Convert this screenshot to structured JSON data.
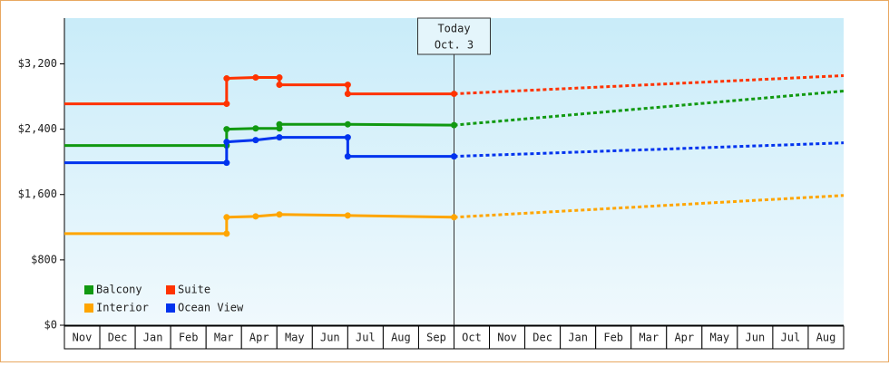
{
  "chart_data": {
    "type": "line",
    "categories": [
      "Nov",
      "Dec",
      "Jan",
      "Feb",
      "Mar",
      "Apr",
      "May",
      "Jun",
      "Jul",
      "Aug",
      "Sep",
      "Oct",
      "Nov",
      "Dec",
      "Jan",
      "Feb",
      "Mar",
      "Apr",
      "May",
      "Jun",
      "Jul",
      "Aug"
    ],
    "xlim": [
      0,
      22
    ],
    "ylim": [
      0,
      3760
    ],
    "yticks": [
      {
        "value": 0,
        "label": "$0"
      },
      {
        "value": 800,
        "label": "$800"
      },
      {
        "value": 1600,
        "label": "$1,600"
      },
      {
        "value": 2400,
        "label": "$2,400"
      },
      {
        "value": 3200,
        "label": "$3,200"
      }
    ],
    "annotation": {
      "x": 11,
      "lines": [
        "Today",
        "Oct. 3"
      ]
    },
    "series": [
      {
        "name": "Balcony",
        "color": "#119911",
        "x": [
          0,
          4.58,
          4.58,
          5.4,
          6.07,
          6.07,
          8.0,
          11
        ],
        "values": [
          2200,
          2200,
          2400,
          2410,
          2410,
          2460,
          2460,
          2450
        ],
        "projection": {
          "x": [
            11,
            22
          ],
          "values": [
            2450,
            2867
          ]
        }
      },
      {
        "name": "Suite",
        "color": "#ff3300",
        "x": [
          0,
          4.58,
          4.58,
          5.4,
          6.07,
          6.07,
          8.0,
          8.0,
          11
        ],
        "values": [
          2711,
          2711,
          3022,
          3033,
          3033,
          2944,
          2944,
          2833,
          2833
        ],
        "projection": {
          "x": [
            11,
            22
          ],
          "values": [
            2833,
            3056
          ]
        }
      },
      {
        "name": "Interior",
        "color": "#ffa500",
        "x": [
          0,
          4.58,
          4.58,
          5.4,
          6.07,
          8.0,
          11
        ],
        "values": [
          1122,
          1122,
          1322,
          1333,
          1356,
          1344,
          1322
        ],
        "projection": {
          "x": [
            11,
            22
          ],
          "values": [
            1322,
            1589
          ]
        }
      },
      {
        "name": "Ocean View",
        "color": "#0033ee",
        "x": [
          0,
          4.58,
          4.58,
          5.4,
          6.07,
          8.0,
          8.0,
          11
        ],
        "values": [
          1989,
          1989,
          2244,
          2267,
          2300,
          2300,
          2067,
          2067
        ],
        "projection": {
          "x": [
            11,
            22
          ],
          "values": [
            2067,
            2233
          ]
        }
      }
    ]
  }
}
